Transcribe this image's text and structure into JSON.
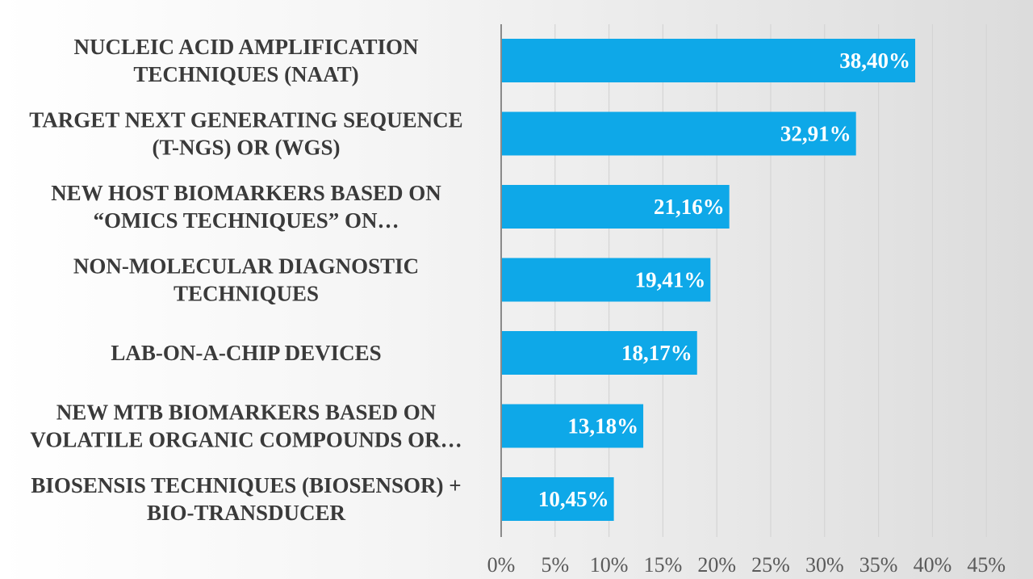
{
  "chart_data": {
    "type": "bar",
    "orientation": "horizontal",
    "title": "",
    "xlabel": "",
    "ylabel": "",
    "categories": [
      [
        "NUCLEIC ACID AMPLIFICATION",
        "TECHNIQUES (NAAT)"
      ],
      [
        "TARGET NEXT GENERATING SEQUENCE",
        "(T-NGS) OR (WGS)"
      ],
      [
        "NEW HOST BIOMARKERS BASED ON",
        "“OMICS TECHNIQUES” ON…"
      ],
      [
        "NON-MOLECULAR DIAGNOSTIC",
        "TECHNIQUES"
      ],
      [
        "LAB-ON-A-CHIP DEVICES"
      ],
      [
        "NEW MTB BIOMARKERS BASED ON",
        "VOLATILE ORGANIC COMPOUNDS OR…"
      ],
      [
        "BIOSENSIS TECHNIQUES  (BIOSENSOR) +",
        "BIO-TRANSDUCER"
      ]
    ],
    "values": [
      38.4,
      32.91,
      21.16,
      19.41,
      18.17,
      13.18,
      10.45
    ],
    "data_labels": [
      "38,40%",
      "32,91%",
      "21,16%",
      "19,41%",
      "18,17%",
      "13,18%",
      "10,45%"
    ],
    "xlim": [
      0,
      45
    ],
    "x_ticks": [
      0,
      5,
      10,
      15,
      20,
      25,
      30,
      35,
      40,
      45
    ],
    "x_tick_labels": [
      "0%",
      "5%",
      "10%",
      "15%",
      "20%",
      "25%",
      "30%",
      "35%",
      "40%",
      "45%"
    ],
    "grid": true,
    "bar_color": "#0ea8e8",
    "grid_color": "#d4d4d4",
    "axis_color": "#8a8a8a"
  }
}
